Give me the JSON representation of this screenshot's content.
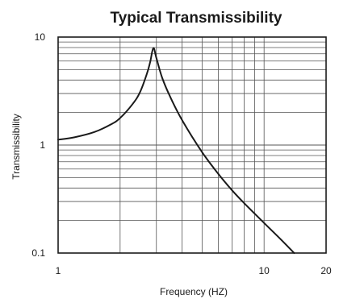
{
  "chart_data": {
    "type": "line",
    "title": "Typical Transmissibility",
    "xlabel": "Frequency (HZ)",
    "ylabel": "Transmissibility",
    "x_scale": "log",
    "y_scale": "log",
    "xlim": [
      1,
      20
    ],
    "ylim": [
      0.1,
      10
    ],
    "x_ticks": [
      {
        "value": 1,
        "label": "1"
      },
      {
        "value": 10,
        "label": "10"
      },
      {
        "value": 20,
        "label": "20"
      }
    ],
    "y_ticks": [
      {
        "value": 10,
        "label": "10"
      },
      {
        "value": 1,
        "label": "1"
      },
      {
        "value": 0.1,
        "label": "0.1"
      }
    ],
    "x_grid": [
      1,
      2,
      3,
      4,
      5,
      6,
      7,
      8,
      9,
      10,
      20
    ],
    "y_grid": [
      0.1,
      0.2,
      0.3,
      0.4,
      0.5,
      0.6,
      0.7,
      0.8,
      0.9,
      1,
      2,
      3,
      4,
      5,
      6,
      7,
      8,
      9,
      10
    ],
    "grid": true,
    "series": [
      {
        "x": [
          1,
          1.2,
          1.5,
          1.8,
          2.0,
          2.3,
          2.5,
          2.7,
          2.8,
          2.9,
          3.0,
          3.2,
          3.5,
          4.0,
          5.0,
          6.0,
          7.0,
          8.0,
          10.0,
          12.0,
          14.0
        ],
        "y": [
          1.12,
          1.18,
          1.32,
          1.55,
          1.78,
          2.4,
          3.1,
          4.6,
          5.9,
          7.9,
          6.4,
          4.2,
          2.8,
          1.7,
          0.86,
          0.54,
          0.38,
          0.29,
          0.19,
          0.135,
          0.1
        ],
        "color": "#1a1a1a"
      }
    ],
    "colors": {
      "frame": "#1a1a1a",
      "grid": "#555555",
      "line": "#1a1a1a",
      "background": "#ffffff"
    }
  }
}
